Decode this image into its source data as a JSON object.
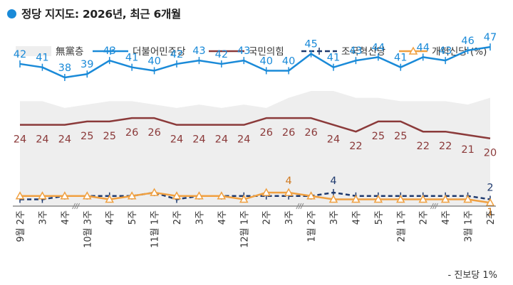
{
  "title": "정당 지지도: 2026년, 최근 6개월",
  "footnote": "- 진보당 1%",
  "chart_data": {
    "type": "line",
    "x": [
      "9월 2주",
      "3주",
      "4주",
      "10월 3주",
      "4주",
      "5주",
      "11월 1주",
      "2주",
      "3주",
      "4주",
      "12월 1주",
      "2주",
      "3주",
      "1월 2주",
      "3주",
      "4주",
      "5주",
      "2월 1주",
      "2주",
      "4주",
      "3월 1주",
      "2주"
    ],
    "tick_labels": [
      {
        "month": "9월",
        "week": "2주"
      },
      {
        "month": "",
        "week": "3주"
      },
      {
        "month": "",
        "week": "4주"
      },
      {
        "month": "10월",
        "week": "3주"
      },
      {
        "month": "",
        "week": "4주"
      },
      {
        "month": "",
        "week": "5주"
      },
      {
        "month": "11월",
        "week": "1주"
      },
      {
        "month": "",
        "week": "2주"
      },
      {
        "month": "",
        "week": "3주"
      },
      {
        "month": "",
        "week": "4주"
      },
      {
        "month": "12월",
        "week": "1주"
      },
      {
        "month": "",
        "week": "2주"
      },
      {
        "month": "",
        "week": "3주"
      },
      {
        "month": "1월",
        "week": "2주"
      },
      {
        "month": "",
        "week": "3주"
      },
      {
        "month": "",
        "week": "4주"
      },
      {
        "month": "",
        "week": "5주"
      },
      {
        "month": "2월",
        "week": "1주"
      },
      {
        "month": "",
        "week": "2주"
      },
      {
        "month": "",
        "week": "4주"
      },
      {
        "month": "3월",
        "week": "1주"
      },
      {
        "month": "",
        "week": "2주"
      }
    ],
    "axis_breaks_after_index": [
      2,
      12,
      18
    ],
    "ylim": [
      0,
      55
    ],
    "grid": false,
    "legend_position": "top",
    "series": [
      {
        "name": "無黨층",
        "kind": "area",
        "color": "#eeeeee",
        "values": [
          31,
          31,
          29,
          30,
          31,
          31,
          30,
          29,
          30,
          29,
          30,
          29,
          32,
          34,
          34,
          32,
          32,
          31,
          31,
          31,
          30,
          32
        ],
        "labeled": []
      },
      {
        "name": "더불어민주당",
        "kind": "line",
        "color": "#1a8ad8",
        "marker": "plus",
        "values": [
          42,
          41,
          38,
          39,
          43,
          41,
          40,
          42,
          43,
          42,
          43,
          40,
          40,
          45,
          41,
          43,
          44,
          41,
          44,
          43,
          46,
          47
        ],
        "labeled": [
          0,
          1,
          2,
          3,
          4,
          5,
          6,
          7,
          8,
          9,
          10,
          11,
          12,
          13,
          14,
          15,
          16,
          17,
          18,
          19,
          20,
          21
        ]
      },
      {
        "name": "국민의힘",
        "kind": "line",
        "color": "#8b3a3a",
        "marker": "none",
        "values": [
          24,
          24,
          24,
          25,
          25,
          26,
          26,
          24,
          24,
          24,
          24,
          26,
          26,
          26,
          24,
          22,
          25,
          25,
          22,
          22,
          21,
          20
        ],
        "labeled": [
          0,
          1,
          2,
          3,
          4,
          5,
          6,
          7,
          8,
          9,
          10,
          11,
          12,
          13,
          14,
          15,
          16,
          17,
          18,
          19,
          20,
          21
        ]
      },
      {
        "name": "조국혁신당",
        "kind": "line",
        "color": "#1f3a6e",
        "dashed": true,
        "marker": "plus",
        "values": [
          2,
          2,
          3,
          3,
          3,
          3,
          4,
          2,
          3,
          3,
          3,
          3,
          3,
          3,
          4,
          3,
          3,
          3,
          3,
          3,
          3,
          2
        ],
        "labeled": [
          14,
          21
        ]
      },
      {
        "name": "개혁신당 (%)",
        "kind": "line",
        "color": "#f0a040",
        "marker": "triangle",
        "values": [
          3,
          3,
          3,
          3,
          2,
          3,
          4,
          3,
          3,
          3,
          2,
          4,
          4,
          3,
          2,
          2,
          2,
          2,
          2,
          2,
          2,
          1
        ],
        "labeled": [
          12,
          21
        ]
      }
    ]
  },
  "colors": {
    "accent": "#1a8ad8",
    "label_blue": "#1a8ad8",
    "label_red": "#8b3a3a",
    "label_navy": "#1f3a6e",
    "label_orange": "#d07a20"
  }
}
